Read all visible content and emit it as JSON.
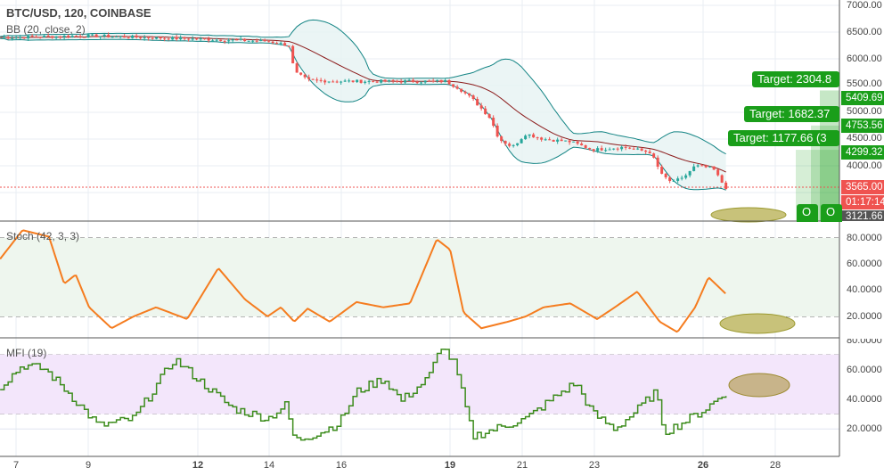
{
  "header": {
    "symbol_title": "BTC/USD, 120, COINBASE",
    "bb_label": "BB (20, close, 2)",
    "stoch_label": "Stoch (42, 3, 3)",
    "mfi_label": "MFI (19)"
  },
  "colors": {
    "up": "#26a69a",
    "down": "#ef5350",
    "bb_band": "#138484",
    "bb_basis": "#8b1a1a",
    "stoch": "#f57c1f",
    "mfi": "#3c8c1c",
    "target": "#1a9e1a",
    "stoch_bg": "#eef6ee",
    "mfi_bg": "#f3e6fb",
    "ellipse": "#c8c27a"
  },
  "price_axis": {
    "ticks": [
      "7000.00",
      "6500.00",
      "6000.00",
      "5500.00",
      "5000.00",
      "4500.00",
      "4000.00"
    ],
    "tags": {
      "target3": "5409.69",
      "target2": "4753.56",
      "target1": "4299.32",
      "last_price": "3565.00",
      "countdown": "01:17:14",
      "low": "3121.66"
    }
  },
  "stoch_axis": {
    "ticks": [
      "80.0000",
      "60.0000",
      "40.0000",
      "20.0000"
    ]
  },
  "mfi_axis": {
    "ticks": [
      "80.0000",
      "60.0000",
      "40.0000",
      "20.0000"
    ]
  },
  "date_axis": {
    "ticks": [
      "7",
      "9",
      "12",
      "14",
      "16",
      "19",
      "21",
      "23",
      "26",
      "28"
    ]
  },
  "targets": [
    "Target: 2304.8",
    "Target: 1682.37",
    "Target: 1177.66 (3"
  ],
  "order_labels": [
    "O",
    "O"
  ],
  "chart_data": [
    {
      "type": "candlestick",
      "title": "BTC/USD, 120, COINBASE",
      "ylim": [
        3000,
        7100
      ],
      "x": [
        6.56,
        9.02,
        11.49,
        13.95,
        14.56,
        14.69,
        15.06,
        15.92,
        16.41,
        18.88,
        19.24,
        19.61,
        20.1,
        20.35,
        20.72,
        21.09,
        21.58,
        22.32,
        22.94,
        23.8,
        24.54,
        24.79,
        25.03,
        25.4,
        25.77,
        26.26,
        26.63
      ],
      "close": [
        6400,
        6430,
        6380,
        6330,
        6250,
        5750,
        5600,
        5580,
        5580,
        5580,
        5450,
        5250,
        4900,
        4500,
        4350,
        4600,
        4500,
        4450,
        4300,
        4350,
        4250,
        3900,
        3700,
        3750,
        4000,
        3950,
        3565
      ],
      "last": 3565
    },
    {
      "type": "line",
      "title": "Stoch (42, 3, 3)",
      "ylim": [
        0,
        90
      ],
      "bands": [
        20,
        80
      ],
      "x": [
        6.56,
        7.18,
        7.91,
        8.33,
        8.65,
        9.02,
        9.64,
        10.25,
        10.87,
        11.73,
        12.59,
        13.33,
        13.95,
        14.32,
        14.69,
        15.06,
        15.67,
        16.41,
        17.15,
        17.89,
        18.63,
        19.0,
        19.37,
        19.86,
        20.6,
        21.09,
        21.58,
        22.32,
        23.06,
        23.55,
        24.17,
        24.79,
        25.28,
        25.77,
        26.14,
        26.63
      ],
      "values": [
        64,
        86,
        81,
        45,
        52,
        27,
        11,
        20,
        27,
        18,
        57,
        33,
        20,
        27,
        16,
        26,
        16,
        31,
        27,
        30,
        79,
        71,
        23,
        11,
        16,
        20,
        27,
        30,
        18,
        27,
        39,
        16,
        8,
        27,
        50,
        37
      ]
    },
    {
      "type": "line",
      "title": "MFI (19)",
      "ylim": [
        0,
        80
      ],
      "bands": [
        30,
        70
      ],
      "x": [
        6.56,
        7.18,
        7.79,
        8.41,
        9.27,
        10.25,
        11.36,
        12.23,
        12.96,
        13.95,
        14.44,
        14.69,
        15.43,
        15.92,
        16.41,
        17.15,
        17.64,
        18.38,
        18.75,
        19.12,
        19.61,
        20.35,
        21.09,
        21.58,
        22.08,
        22.45,
        22.94,
        23.55,
        24.17,
        24.66,
        24.91,
        25.4,
        26.02,
        26.63
      ],
      "values": [
        49,
        63,
        60,
        45,
        22,
        27,
        67,
        49,
        34,
        27,
        36,
        12,
        18,
        24,
        45,
        54,
        39,
        54,
        76,
        63,
        15,
        21,
        27,
        36,
        45,
        51,
        30,
        20,
        33,
        45,
        18,
        24,
        33,
        45
      ]
    }
  ]
}
